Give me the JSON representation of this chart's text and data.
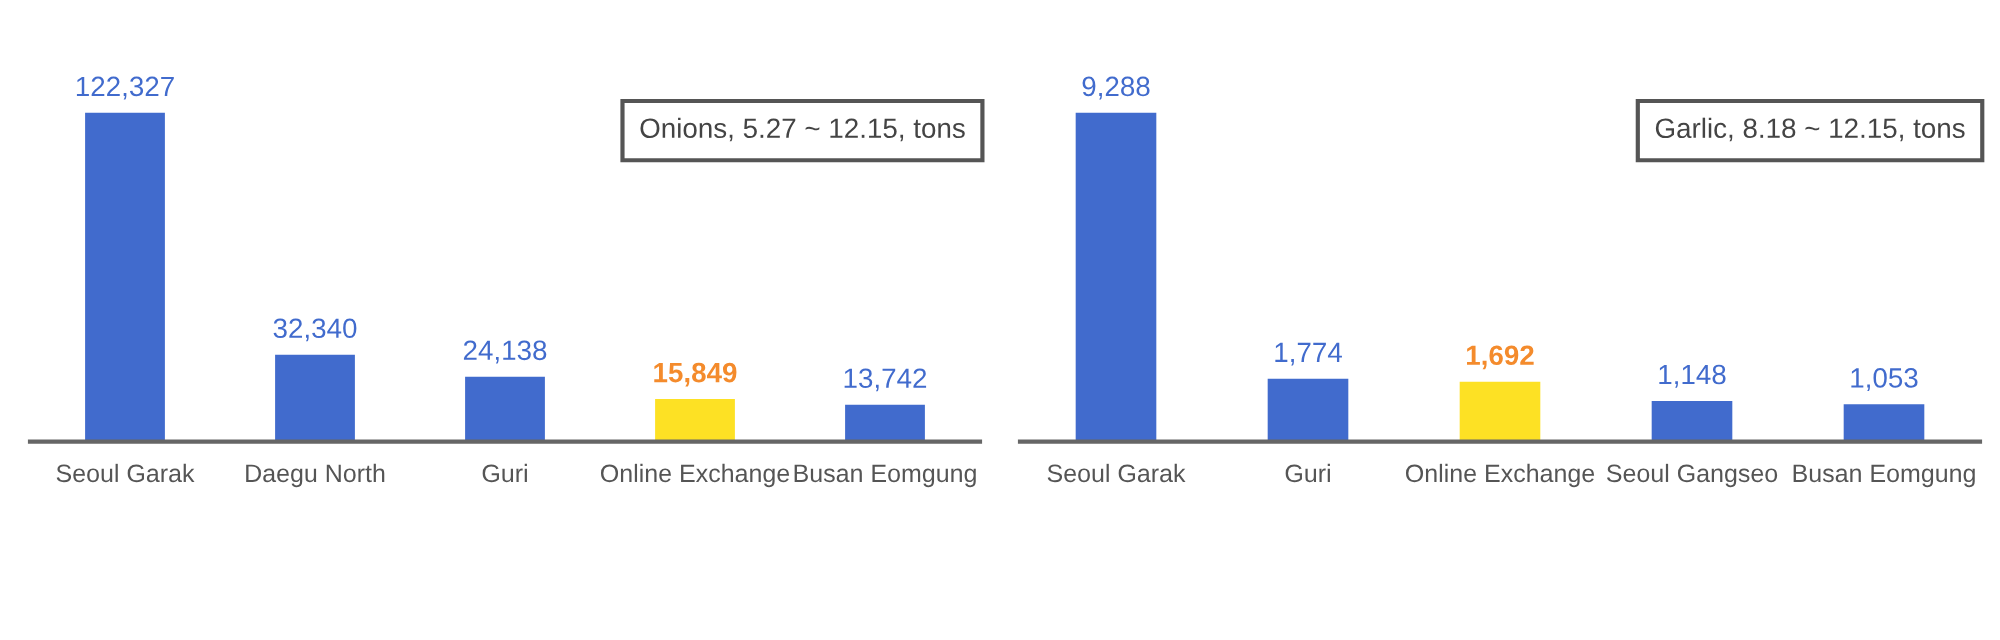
{
  "chart_data": [
    {
      "type": "bar",
      "annotations": [
        "Onions, 5.27 ~ 12.15, tons"
      ],
      "categories": [
        "Seoul Garak",
        "Daegu North",
        "Guri",
        "Online Exchange",
        "Busan Eomgung"
      ],
      "values": [
        122327,
        32340,
        24138,
        15849,
        13742
      ],
      "value_labels": [
        "122,327",
        "32,340",
        "24,138",
        "15,849",
        "13,742"
      ],
      "colors": [
        "#416bcd",
        "#416bcd",
        "#416bcd",
        "#fde124",
        "#416bcd"
      ]
    },
    {
      "type": "bar",
      "annotations": [
        "Garlic, 8.18 ~ 12.15, tons"
      ],
      "categories": [
        "Seoul Garak",
        "Guri",
        "Online Exchange",
        "Seoul Gangseo",
        "Busan Eomgung"
      ],
      "values": [
        9288,
        1774,
        1692,
        1148,
        1053
      ],
      "value_labels": [
        "9,288",
        "1,774",
        "1,692",
        "1,148",
        "1,053"
      ],
      "colors": [
        "#416bcd",
        "#416bcd",
        "#fde124",
        "#416bcd",
        "#416bcd"
      ]
    }
  ]
}
